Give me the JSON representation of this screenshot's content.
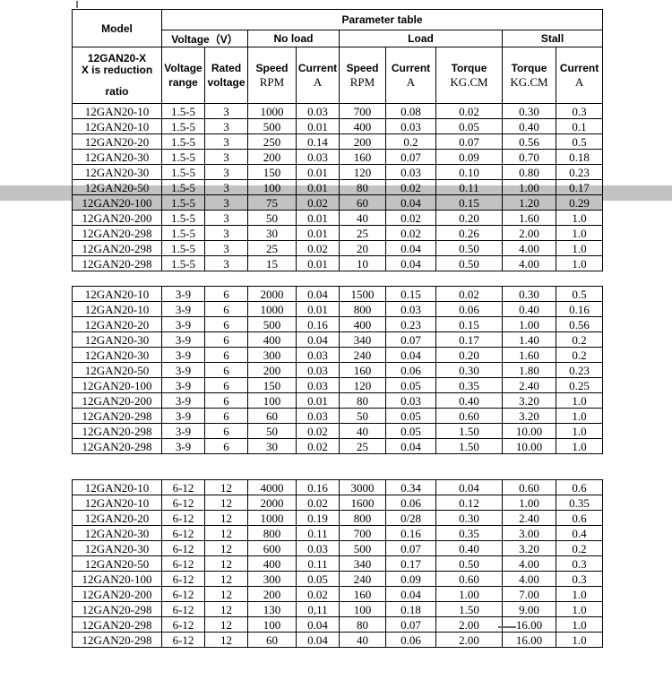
{
  "table": {
    "title": "Parameter table",
    "model_header": "Model",
    "model_note": {
      "line1": "12GAN20-X",
      "line2": "X is reduction",
      "line3": "ratio"
    },
    "groups_header": [
      {
        "label": "Voltage（V）",
        "span": 2
      },
      {
        "label": "No load",
        "span": 2
      },
      {
        "label": "Load",
        "span": 3
      },
      {
        "label": "Stall",
        "span": 2
      }
    ],
    "columns": [
      {
        "top": "Voltage",
        "bottom": "range"
      },
      {
        "top": "Rated",
        "bottom": "voltage"
      },
      {
        "top": "Speed",
        "bottom": "RPM"
      },
      {
        "top": "Current",
        "bottom": "A"
      },
      {
        "top": "Speed",
        "bottom": "RPM"
      },
      {
        "top": "Current",
        "bottom": "A"
      },
      {
        "top": "Torque",
        "bottom": "KG.CM"
      },
      {
        "top": "Torque",
        "bottom": "KG.CM"
      },
      {
        "top": "Current",
        "bottom": "A"
      }
    ],
    "highlight": {
      "group_index": 0,
      "row_index": 6,
      "color": "#c2c2c2"
    },
    "groups": [
      {
        "rows": [
          [
            "12GAN20-10",
            "1.5-5",
            "3",
            "1000",
            "0.03",
            "700",
            "0.08",
            "0.02",
            "0.30",
            "0.3"
          ],
          [
            "12GAN20-10",
            "1.5-5",
            "3",
            "500",
            "0.01",
            "400",
            "0.03",
            "0.05",
            "0.40",
            "0.1"
          ],
          [
            "12GAN20-20",
            "1.5-5",
            "3",
            "250",
            "0.14",
            "200",
            "0.2",
            "0.07",
            "0.56",
            "0.5"
          ],
          [
            "12GAN20-30",
            "1.5-5",
            "3",
            "200",
            "0.03",
            "160",
            "0.07",
            "0.09",
            "0.70",
            "0.18"
          ],
          [
            "12GAN20-30",
            "1.5-5",
            "3",
            "150",
            "0.01",
            "120",
            "0.03",
            "0.10",
            "0.80",
            "0.23"
          ],
          [
            "12GAN20-50",
            "1.5-5",
            "3",
            "100",
            "0.01",
            "80",
            "0.02",
            "0.11",
            "1.00",
            "0.17"
          ],
          [
            "12GAN20-100",
            "1.5-5",
            "3",
            "75",
            "0.02",
            "60",
            "0.04",
            "0.15",
            "1.20",
            "0.29"
          ],
          [
            "12GAN20-200",
            "1.5-5",
            "3",
            "50",
            "0.01",
            "40",
            "0.02",
            "0.20",
            "1.60",
            "1.0"
          ],
          [
            "12GAN20-298",
            "1.5-5",
            "3",
            "30",
            "0.01",
            "25",
            "0.02",
            "0.26",
            "2.00",
            "1.0"
          ],
          [
            "12GAN20-298",
            "1.5-5",
            "3",
            "25",
            "0.02",
            "20",
            "0.04",
            "0.50",
            "4.00",
            "1.0"
          ],
          [
            "12GAN20-298",
            "1.5-5",
            "3",
            "15",
            "0.01",
            "10",
            "0.04",
            "0.50",
            "4.00",
            "1.0"
          ]
        ]
      },
      {
        "rows": [
          [
            "12GAN20-10",
            "3-9",
            "6",
            "2000",
            "0.04",
            "1500",
            "0.15",
            "0.02",
            "0.30",
            "0.5"
          ],
          [
            "12GAN20-10",
            "3-9",
            "6",
            "1000",
            "0.01",
            "800",
            "0.03",
            "0.06",
            "0.40",
            "0.16"
          ],
          [
            "12GAN20-20",
            "3-9",
            "6",
            "500",
            "0.16",
            "400",
            "0.23",
            "0.15",
            "1.00",
            "0.56"
          ],
          [
            "12GAN20-30",
            "3-9",
            "6",
            "400",
            "0.04",
            "340",
            "0.07",
            "0.17",
            "1.40",
            "0.2"
          ],
          [
            "12GAN20-30",
            "3-9",
            "6",
            "300",
            "0.03",
            "240",
            "0.04",
            "0.20",
            "1.60",
            "0.2"
          ],
          [
            "12GAN20-50",
            "3-9",
            "6",
            "200",
            "0.03",
            "160",
            "0.06",
            "0.30",
            "1.80",
            "0.23"
          ],
          [
            "12GAN20-100",
            "3-9",
            "6",
            "150",
            "0.03",
            "120",
            "0.05",
            "0.35",
            "2.40",
            "0.25"
          ],
          [
            "12GAN20-200",
            "3-9",
            "6",
            "100",
            "0.01",
            "80",
            "0.03",
            "0.40",
            "3.20",
            "1.0"
          ],
          [
            "12GAN20-298",
            "3-9",
            "6",
            "60",
            "0.03",
            "50",
            "0.05",
            "0.60",
            "3.20",
            "1.0"
          ],
          [
            "12GAN20-298",
            "3-9",
            "6",
            "50",
            "0.02",
            "40",
            "0.05",
            "1.50",
            "10.00",
            "1.0"
          ],
          [
            "12GAN20-298",
            "3-9",
            "6",
            "30",
            "0.02",
            "25",
            "0.04",
            "1.50",
            "10.00",
            "1.0"
          ]
        ]
      },
      {
        "rows": [
          [
            "12GAN20-10",
            "6-12",
            "12",
            "4000",
            "0.16",
            "3000",
            "0.34",
            "0.04",
            "0.60",
            "0.6"
          ],
          [
            "12GAN20-10",
            "6-12",
            "12",
            "2000",
            "0.02",
            "1600",
            "0.06",
            "0.12",
            "1.00",
            "0.35"
          ],
          [
            "12GAN20-20",
            "6-12",
            "12",
            "1000",
            "0.19",
            "800",
            "0/28",
            "0.30",
            "2.40",
            "0.6"
          ],
          [
            "12GAN20-30",
            "6-12",
            "12",
            "800",
            "0.11",
            "700",
            "0.16",
            "0.35",
            "3.00",
            "0.4"
          ],
          [
            "12GAN20-30",
            "6-12",
            "12",
            "600",
            "0.03",
            "500",
            "0.07",
            "0.40",
            "3.20",
            "0.2"
          ],
          [
            "12GAN20-50",
            "6-12",
            "12",
            "400",
            "0.11",
            "340",
            "0.17",
            "0.50",
            "4.00",
            "0.3"
          ],
          [
            "12GAN20-100",
            "6-12",
            "12",
            "300",
            "0.05",
            "240",
            "0.09",
            "0.60",
            "4.00",
            "0.3"
          ],
          [
            "12GAN20-200",
            "6-12",
            "12",
            "200",
            "0.02",
            "160",
            "0.04",
            "1.00",
            "7.00",
            "1.0"
          ],
          [
            "12GAN20-298",
            "6-12",
            "12",
            "130",
            "0,11",
            "100",
            "0.18",
            "1.50",
            "9.00",
            "1.0"
          ],
          [
            "12GAN20-298",
            "6-12",
            "12",
            "100",
            "0.04",
            "80",
            "0.07",
            "2.00",
            "16.00",
            "1.0"
          ],
          [
            "12GAN20-298",
            "6-12",
            "12",
            "60",
            "0.04",
            "40",
            "0.06",
            "2.00",
            "16.00",
            "1.0"
          ]
        ]
      }
    ]
  }
}
